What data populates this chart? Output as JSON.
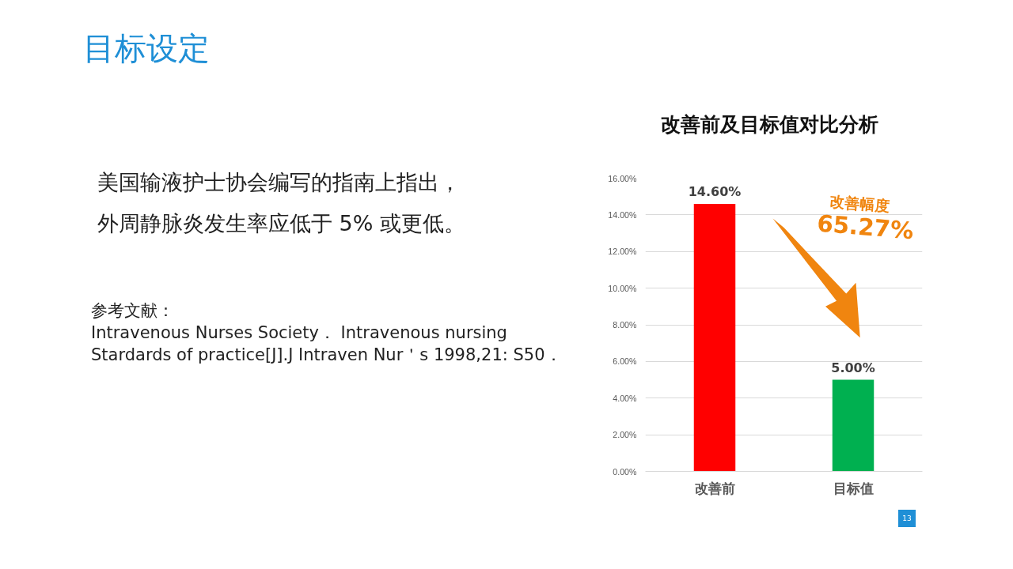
{
  "chart_data": {
    "type": "bar",
    "title": "改善前及目标值对比分析",
    "categories": [
      "改善前",
      "目标值"
    ],
    "values": [
      14.6,
      5.0
    ],
    "colors": [
      "#ff0000",
      "#00b050"
    ],
    "value_labels": [
      "14.60%",
      "5.00%"
    ],
    "ylim": [
      0,
      16
    ],
    "yticks": [
      {
        "value": 0,
        "label": "0.00%"
      },
      {
        "value": 2,
        "label": "2.00%"
      },
      {
        "value": 4,
        "label": "4.00%"
      },
      {
        "value": 6,
        "label": "6.00%"
      },
      {
        "value": 8,
        "label": "8.00%"
      },
      {
        "value": 10,
        "label": "10.00%"
      },
      {
        "value": 12,
        "label": "12.00%"
      },
      {
        "value": 14,
        "label": "14.00%"
      },
      {
        "value": 16,
        "label": "16.00%"
      }
    ],
    "grid": "y",
    "annotations": [
      "目标设定",
      "美国输液护士协会编写的指南上指出，",
      "外周静脉炎发生率应低于 5% 或更低。",
      "参考文献：",
      "Intravenous Nurses Society．  Intravenous nursing Stardards of practice[J].J Intraven Nur＇s 1998,21: S50．",
      "改善幅度",
      "65.27%",
      "13"
    ]
  }
}
